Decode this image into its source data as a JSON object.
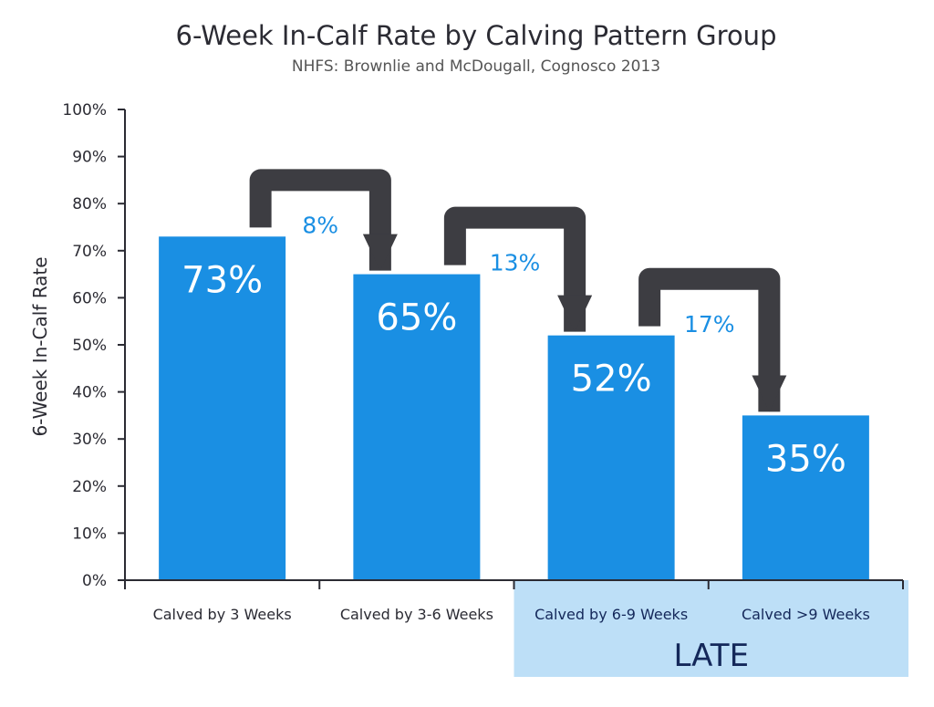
{
  "chart_data": {
    "type": "bar",
    "title": "6-Week In-Calf Rate by Calving Pattern Group",
    "subtitle": "NHFS: Brownlie and McDougall, Cognosco 2013",
    "ylabel": "6-Week In-Calf Rate",
    "xlabel": "",
    "ylim": [
      0,
      100
    ],
    "yticks": [
      "0%",
      "10%",
      "20%",
      "30%",
      "40%",
      "50%",
      "60%",
      "70%",
      "80%",
      "90%",
      "100%"
    ],
    "categories": [
      "Calved by 3 Weeks",
      "Calved by 3-6 Weeks",
      "Calved by 6-9 Weeks",
      "Calved >9 Weeks"
    ],
    "values": [
      73,
      65,
      52,
      35
    ],
    "data_labels": [
      "73%",
      "65%",
      "52%",
      "35%"
    ],
    "drops": [
      {
        "from": "Calved by 3 Weeks",
        "to": "Calved by 3-6 Weeks",
        "label": "8%"
      },
      {
        "from": "Calved by 3-6 Weeks",
        "to": "Calved by 6-9 Weeks",
        "label": "13%"
      },
      {
        "from": "Calved by 6-9 Weeks",
        "to": "Calved >9 Weeks",
        "label": "17%"
      }
    ],
    "highlight": {
      "label": "LATE",
      "categories": [
        "Calved by 6-9 Weeks",
        "Calved >9 Weeks"
      ]
    },
    "grid": false,
    "legend": "none",
    "colors": {
      "bar": "#1a8fe3",
      "arrow": "#3d3d42",
      "drop_label": "#1a8fe3",
      "highlight_bg": "#bddff7",
      "highlight_text": "#14285a",
      "axis": "#2b2b33"
    }
  }
}
